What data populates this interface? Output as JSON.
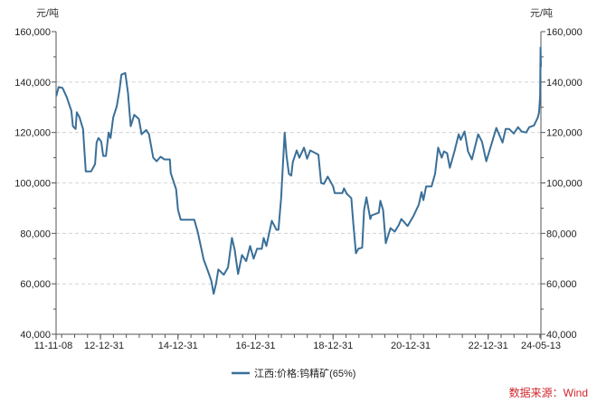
{
  "chart_data": {
    "type": "line",
    "title": "",
    "unit_left": "元/吨",
    "unit_right": "元/吨",
    "ylim": [
      40000,
      160000
    ],
    "y_ticks": [
      40000,
      60000,
      80000,
      100000,
      120000,
      140000,
      160000
    ],
    "y_tick_labels": [
      "40,000",
      "60,000",
      "80,000",
      "100,000",
      "120,000",
      "140,000",
      "160,000"
    ],
    "xlim": [
      2011.855,
      2024.36
    ],
    "x_ticks": [
      {
        "x": 2011.855,
        "label": "11-11-08"
      },
      {
        "x": 2013.0,
        "label": "12-12-31"
      },
      {
        "x": 2015.0,
        "label": "14-12-31"
      },
      {
        "x": 2017.0,
        "label": "16-12-31"
      },
      {
        "x": 2019.0,
        "label": "18-12-31"
      },
      {
        "x": 2021.0,
        "label": "20-12-31"
      },
      {
        "x": 2023.0,
        "label": "22-12-31"
      },
      {
        "x": 2024.36,
        "label": "24-05-13"
      }
    ],
    "grid": "horizontal-dashed",
    "legend_position": "bottom-center",
    "series": [
      {
        "name": "江西:价格:钨精矿(65%)",
        "color": "#3a6f98",
        "points": [
          [
            2011.86,
            134400
          ],
          [
            2011.92,
            138000
          ],
          [
            2012.02,
            137700
          ],
          [
            2012.13,
            134000
          ],
          [
            2012.25,
            128600
          ],
          [
            2012.29,
            122500
          ],
          [
            2012.36,
            121400
          ],
          [
            2012.39,
            128000
          ],
          [
            2012.46,
            126000
          ],
          [
            2012.55,
            121400
          ],
          [
            2012.62,
            104600
          ],
          [
            2012.76,
            104600
          ],
          [
            2012.86,
            107500
          ],
          [
            2012.9,
            116000
          ],
          [
            2012.95,
            117800
          ],
          [
            2013.02,
            116400
          ],
          [
            2013.07,
            110700
          ],
          [
            2013.14,
            110700
          ],
          [
            2013.21,
            120000
          ],
          [
            2013.26,
            117800
          ],
          [
            2013.33,
            126000
          ],
          [
            2013.42,
            130400
          ],
          [
            2013.49,
            136800
          ],
          [
            2013.54,
            142900
          ],
          [
            2013.64,
            143600
          ],
          [
            2013.71,
            135700
          ],
          [
            2013.78,
            122500
          ],
          [
            2013.87,
            127000
          ],
          [
            2013.99,
            125400
          ],
          [
            2014.06,
            119300
          ],
          [
            2014.18,
            121000
          ],
          [
            2014.25,
            119300
          ],
          [
            2014.36,
            110000
          ],
          [
            2014.45,
            108600
          ],
          [
            2014.55,
            110400
          ],
          [
            2014.65,
            109300
          ],
          [
            2014.79,
            109300
          ],
          [
            2014.81,
            104000
          ],
          [
            2014.95,
            97500
          ],
          [
            2015.0,
            89300
          ],
          [
            2015.07,
            85400
          ],
          [
            2015.42,
            85400
          ],
          [
            2015.51,
            80400
          ],
          [
            2015.66,
            69700
          ],
          [
            2015.78,
            64700
          ],
          [
            2015.86,
            61100
          ],
          [
            2015.92,
            56000
          ],
          [
            2015.98,
            60000
          ],
          [
            2016.04,
            65700
          ],
          [
            2016.18,
            63600
          ],
          [
            2016.29,
            66500
          ],
          [
            2016.39,
            78200
          ],
          [
            2016.46,
            73600
          ],
          [
            2016.55,
            63900
          ],
          [
            2016.65,
            71400
          ],
          [
            2016.76,
            69000
          ],
          [
            2016.86,
            75000
          ],
          [
            2016.95,
            70000
          ],
          [
            2017.04,
            73900
          ],
          [
            2017.16,
            73900
          ],
          [
            2017.21,
            78200
          ],
          [
            2017.28,
            75000
          ],
          [
            2017.42,
            85000
          ],
          [
            2017.54,
            81400
          ],
          [
            2017.59,
            81400
          ],
          [
            2017.66,
            94000
          ],
          [
            2017.75,
            120000
          ],
          [
            2017.8,
            110700
          ],
          [
            2017.86,
            103600
          ],
          [
            2017.92,
            102900
          ],
          [
            2017.96,
            108200
          ],
          [
            2018.06,
            112900
          ],
          [
            2018.13,
            110000
          ],
          [
            2018.25,
            114000
          ],
          [
            2018.33,
            109600
          ],
          [
            2018.41,
            112900
          ],
          [
            2018.62,
            111200
          ],
          [
            2018.69,
            100000
          ],
          [
            2018.76,
            99600
          ],
          [
            2018.86,
            102500
          ],
          [
            2019.0,
            98600
          ],
          [
            2019.04,
            96000
          ],
          [
            2019.24,
            96000
          ],
          [
            2019.28,
            97900
          ],
          [
            2019.35,
            95700
          ],
          [
            2019.47,
            94000
          ],
          [
            2019.52,
            84300
          ],
          [
            2019.59,
            72100
          ],
          [
            2019.65,
            73900
          ],
          [
            2019.75,
            74300
          ],
          [
            2019.8,
            89300
          ],
          [
            2019.86,
            94300
          ],
          [
            2019.96,
            85700
          ],
          [
            2019.99,
            87100
          ],
          [
            2020.18,
            88200
          ],
          [
            2020.22,
            92900
          ],
          [
            2020.29,
            89300
          ],
          [
            2020.36,
            76100
          ],
          [
            2020.48,
            82100
          ],
          [
            2020.59,
            80700
          ],
          [
            2020.69,
            83200
          ],
          [
            2020.76,
            85700
          ],
          [
            2020.92,
            82900
          ],
          [
            2021.07,
            86800
          ],
          [
            2021.21,
            91400
          ],
          [
            2021.28,
            96400
          ],
          [
            2021.33,
            93200
          ],
          [
            2021.4,
            98600
          ],
          [
            2021.54,
            98600
          ],
          [
            2021.63,
            103600
          ],
          [
            2021.71,
            114000
          ],
          [
            2021.8,
            110000
          ],
          [
            2021.86,
            112500
          ],
          [
            2021.94,
            111800
          ],
          [
            2022.01,
            106000
          ],
          [
            2022.13,
            112500
          ],
          [
            2022.24,
            119300
          ],
          [
            2022.29,
            117100
          ],
          [
            2022.39,
            120400
          ],
          [
            2022.48,
            112500
          ],
          [
            2022.58,
            109300
          ],
          [
            2022.74,
            119300
          ],
          [
            2022.84,
            116400
          ],
          [
            2022.95,
            108600
          ],
          [
            2023.09,
            115700
          ],
          [
            2023.21,
            121800
          ],
          [
            2023.37,
            116000
          ],
          [
            2023.45,
            121400
          ],
          [
            2023.54,
            121400
          ],
          [
            2023.66,
            119600
          ],
          [
            2023.77,
            122100
          ],
          [
            2023.86,
            120400
          ],
          [
            2023.98,
            120000
          ],
          [
            2024.06,
            122100
          ],
          [
            2024.18,
            122800
          ],
          [
            2024.28,
            126000
          ],
          [
            2024.31,
            127900
          ],
          [
            2024.34,
            134300
          ],
          [
            2024.35,
            153700
          ],
          [
            2024.36,
            146000
          ]
        ]
      }
    ]
  },
  "source": "数据来源：Wind"
}
